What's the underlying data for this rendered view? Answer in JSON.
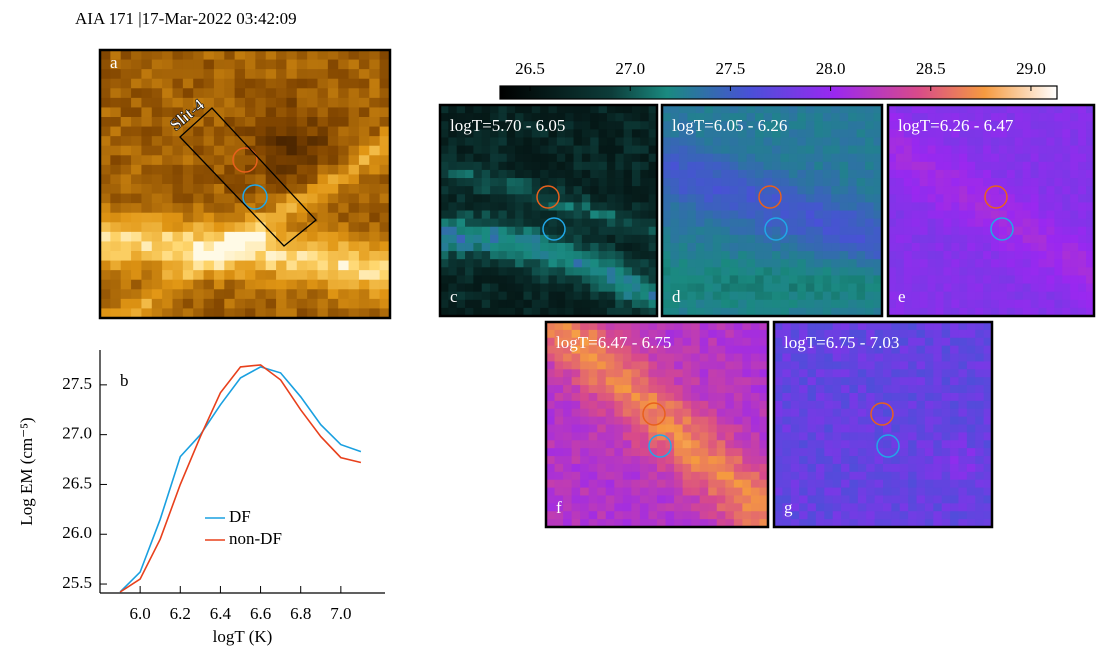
{
  "header": {
    "title": "AIA 171 |17-Mar-2022 03:42:09"
  },
  "image_panels": [
    {
      "label": "a",
      "annotation": "Slit-4"
    },
    {
      "label": "c",
      "title": "logT=5.70 - 6.05"
    },
    {
      "label": "d",
      "title": "logT=6.05 - 6.26"
    },
    {
      "label": "e",
      "title": "logT=6.26 - 6.47"
    },
    {
      "label": "f",
      "title": "logT=6.47 - 6.75"
    },
    {
      "label": "g",
      "title": "logT=6.75 - 7.03"
    }
  ],
  "colorbar": {
    "lim": [
      26.35,
      29.13
    ],
    "ticks": [
      26.5,
      {
        "value": 27,
        "label": "27.0"
      },
      27.5,
      {
        "value": 28,
        "label": "28.0"
      },
      28.5,
      {
        "value": 29,
        "label": "29.0"
      }
    ]
  },
  "chart_data": {
    "type": "line",
    "panel_label": "b",
    "xlabel": "logT (K)",
    "ylabel": "Log EM (cm⁻⁵)",
    "x": [
      5.9,
      6.0,
      6.1,
      6.2,
      6.3,
      6.4,
      6.5,
      6.6,
      6.7,
      6.8,
      6.9,
      7.0,
      7.1
    ],
    "series": [
      {
        "name": "DF",
        "color": "#1aa0e0",
        "values": [
          25.42,
          25.62,
          26.15,
          26.78,
          27.0,
          27.3,
          27.57,
          27.68,
          27.62,
          27.38,
          27.1,
          26.9,
          26.83
        ]
      },
      {
        "name": "non-DF",
        "color": "#e8401c",
        "values": [
          25.42,
          25.55,
          25.95,
          26.5,
          26.98,
          27.42,
          27.68,
          27.7,
          27.55,
          27.25,
          26.98,
          26.77,
          26.72
        ]
      }
    ],
    "xlim": [
      5.8,
      7.22
    ],
    "ylim": [
      25.41,
      27.85
    ],
    "xticks": [
      {
        "value": 6,
        "label": "6.0"
      },
      6.2,
      6.4,
      6.6,
      6.8,
      {
        "value": 7,
        "label": "7.0"
      }
    ],
    "yticks": [
      25.5,
      {
        "value": 26,
        "label": "26.0"
      },
      26.5,
      {
        "value": 27,
        "label": "27.0"
      },
      27.5
    ]
  }
}
